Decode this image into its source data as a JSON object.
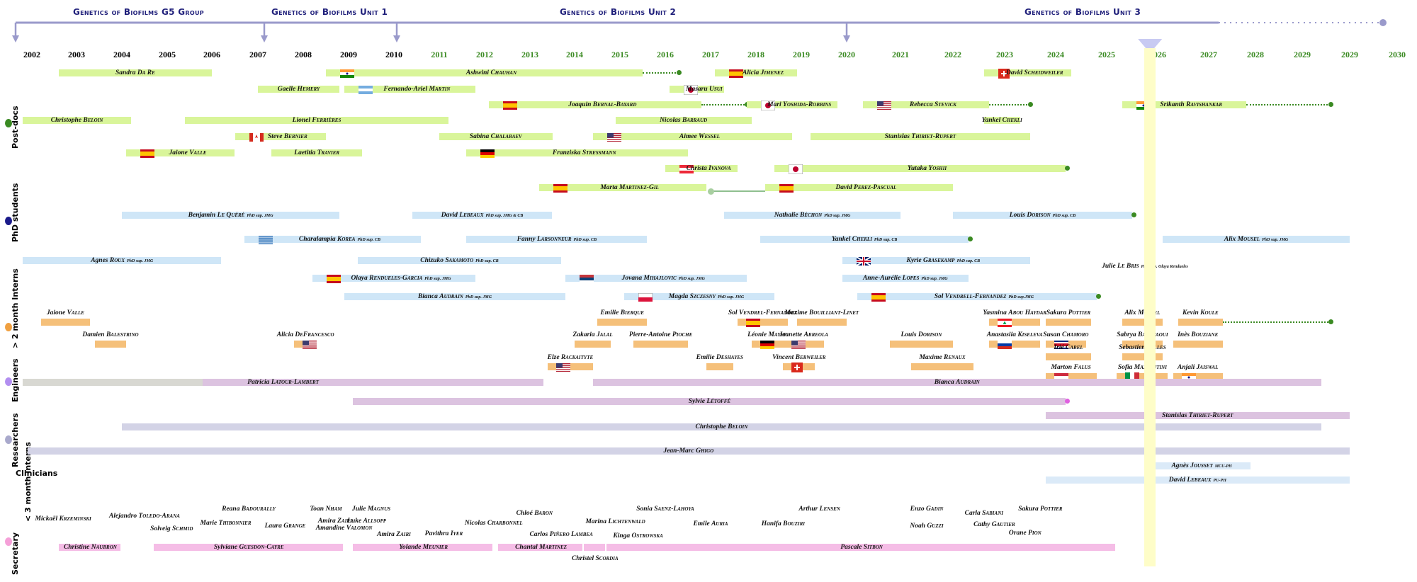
{
  "timeline": {
    "units": [
      {
        "title": "Genetics of Biofilms G5 Group",
        "start": 2002
      },
      {
        "title": "Genetics of Biofilms Unit 1",
        "start": 2007
      },
      {
        "title": "Genetics of Biofilms Unit 2",
        "start": 2010
      },
      {
        "title": "Genetics of Biofilms Unit 3",
        "start": 2020
      }
    ],
    "years": [
      {
        "label": "2002",
        "color": "#000000"
      },
      {
        "label": "2003",
        "color": "#000000"
      },
      {
        "label": "2004",
        "color": "#000000"
      },
      {
        "label": "2005",
        "color": "#000000"
      },
      {
        "label": "2006",
        "color": "#000000"
      },
      {
        "label": "2007",
        "color": "#000000"
      },
      {
        "label": "2008",
        "color": "#000000"
      },
      {
        "label": "2009",
        "color": "#000000"
      },
      {
        "label": "2010",
        "color": "#000000"
      },
      {
        "label": "2011",
        "color": "#3a8a22"
      },
      {
        "label": "2012",
        "color": "#3a8a22"
      },
      {
        "label": "2013",
        "color": "#3a8a22"
      },
      {
        "label": "2014",
        "color": "#3a8a22"
      },
      {
        "label": "2015",
        "color": "#3a8a22"
      },
      {
        "label": "2016",
        "color": "#3a8a22"
      },
      {
        "label": "2017",
        "color": "#3a8a22"
      },
      {
        "label": "2018",
        "color": "#3a8a22"
      },
      {
        "label": "2019",
        "color": "#3a8a22"
      },
      {
        "label": "2020",
        "color": "#3a8a22"
      },
      {
        "label": "2021",
        "color": "#3a8a22"
      },
      {
        "label": "2022",
        "color": "#3a8a22"
      },
      {
        "label": "2023",
        "color": "#3a8a22"
      },
      {
        "label": "2024",
        "color": "#3a8a22"
      },
      {
        "label": "2025",
        "color": "#3a8a22"
      },
      {
        "label": "2026",
        "color": "#3a8a22"
      },
      {
        "label": "2027",
        "color": "#3a8a22"
      },
      {
        "label": "2028",
        "color": "#3a8a22"
      },
      {
        "label": "2029",
        "color": "#3a8a22"
      },
      {
        "label": "2029",
        "color": "#3a8a22"
      },
      {
        "label": "2030",
        "color": "#3a8a22"
      }
    ],
    "current_year_marker": "2026",
    "colors": {
      "axis": "#9a9acb",
      "postdoc_bar": "#d9f59a",
      "phd_bar": "#cfe6f7",
      "intern_bar": "#f5c07a",
      "engineer_bar": "#dcc3e0",
      "researcher_bar": "#d3d3e6",
      "clinician_bar": "#dbeaf8",
      "secretary_bar": "#f5bde6",
      "grey_bar": "#d8d8d2",
      "highlight": "#fefdc8"
    }
  },
  "categories": [
    {
      "label": "Post-docs",
      "dot_color": "#3a8a22"
    },
    {
      "label": "PhD students",
      "dot_color": "#1a1a8a"
    },
    {
      "label": "> 2 month Interns",
      "dot_color": "#f0a040"
    },
    {
      "label": "Engineers",
      "dot_color": "#b28ef0"
    },
    {
      "label": "Researchers",
      "dot_color": "#a9a9cc"
    },
    {
      "label": "Clinicians",
      "dot_color": ""
    },
    {
      "label": "Secretary",
      "dot_color": "#f5a0d8"
    },
    {
      "label": "< 3 month Interns",
      "dot_color": ""
    }
  ],
  "people": {
    "postdocs": [
      {
        "name": "Sandra Da Re",
        "start": 2002.6,
        "end": 2006.0,
        "row": 0
      },
      {
        "name": "Ashwini Chauhan",
        "flag": "india",
        "start": 2008.5,
        "end": 2015.5,
        "row": 0,
        "dotted_to": 2016.3
      },
      {
        "name": "Alicia Jimenez",
        "flag": "spain",
        "start": 2017.1,
        "end": 2018.9,
        "row": 0
      },
      {
        "name": "David Scheidweiler",
        "flag": "switzerland",
        "start": 2022.6,
        "end": 2024.3,
        "row": 0
      },
      {
        "name": "Gaelle Hemery",
        "start": 2007.0,
        "end": 2008.8,
        "row": 1
      },
      {
        "name": "Fernando-Ariel Martin",
        "flag": "argentina",
        "start": 2008.9,
        "end": 2011.8,
        "row": 1
      },
      {
        "name": "Masaru Usui",
        "flag": "japan",
        "start": 2016.1,
        "end": 2017.3,
        "row": 1
      },
      {
        "name": "Joaquin Bernal-Bayard",
        "flag": "spain",
        "start": 2012.1,
        "end": 2016.8,
        "row": 2,
        "dotted_to": 2017.8
      },
      {
        "name": "Mari Yoshida-Robbins",
        "flag": "japan",
        "start": 2017.8,
        "end": 2019.8,
        "row": 2
      },
      {
        "name": "Rebecca Stevick",
        "flag": "usa",
        "start": 2020.3,
        "end": 2022.7,
        "row": 2,
        "dotted_to": 2023.5
      },
      {
        "name": "Srikanth Ravishankar",
        "flag": "india",
        "start": 2025.3,
        "end": 2027.8,
        "row": 2,
        "dotted_to": 2029.6
      },
      {
        "name": "Christophe Beloin",
        "start": 2001.8,
        "end": 2004.2,
        "row": 3
      },
      {
        "name": "Lionel Ferrières",
        "start": 2005.4,
        "end": 2011.2,
        "row": 3
      },
      {
        "name": "Nicolas Barraud",
        "start": 2014.9,
        "end": 2017.9,
        "row": 3
      },
      {
        "name": "Yankel Chekli",
        "start": 2022.6,
        "end": 2023.3,
        "row": 3
      },
      {
        "name": "Steve Bernier",
        "flag": "canada",
        "start": 2006.5,
        "end": 2008.5,
        "row": 4
      },
      {
        "name": "Sabina Chalabaev",
        "start": 2011.0,
        "end": 2013.5,
        "row": 4
      },
      {
        "name": "Aimee Wessel",
        "flag": "usa",
        "start": 2014.4,
        "end": 2018.8,
        "row": 4
      },
      {
        "name": "Stanislas Thiriet-Rupert",
        "start": 2019.2,
        "end": 2023.5,
        "row": 4,
        "dotted_end": true
      },
      {
        "name": "Jaione Valle",
        "flag": "spain",
        "start": 2004.1,
        "end": 2006.5,
        "row": 5
      },
      {
        "name": "Laetitia Travier",
        "start": 2007.3,
        "end": 2009.3,
        "row": 5
      },
      {
        "name": "Franziska Stressmann",
        "flag": "germany",
        "start": 2011.6,
        "end": 2016.5,
        "row": 5
      },
      {
        "name": "Christa Ivanova",
        "flag": "austria",
        "start": 2016.0,
        "end": 2017.6,
        "row": 6
      },
      {
        "name": "Yutaka Yoshii",
        "flag": "japan",
        "start": 2018.4,
        "end": 2024.2,
        "row": 6,
        "end_dot": true
      },
      {
        "name": "Marta Martinez-Gil",
        "flag": "spain",
        "start": 2013.2,
        "end": 2016.9,
        "row": 7
      },
      {
        "name": "David Perez-Pascual",
        "flag": "spain",
        "start": 2018.2,
        "end": 2022.0,
        "row": 7
      }
    ],
    "phd": [
      {
        "name": "Benjamin Le Quéré",
        "sup": "PhD sup. JMG",
        "start": 2004.0,
        "end": 2008.8,
        "row": 0
      },
      {
        "name": "David Lebeaux",
        "sup": "PhD sup. JMG & CB",
        "start": 2010.4,
        "end": 2013.5,
        "row": 0
      },
      {
        "name": "Nathalie Béchon",
        "sup": "PhD sup. JMG",
        "start": 2017.3,
        "end": 2021.0,
        "row": 0
      },
      {
        "name": "Louis Dorison",
        "sup": "PhD sup. CB",
        "start": 2022.0,
        "end": 2025.5,
        "row": 0,
        "end_dot": true
      },
      {
        "name": "Charalampia Korea",
        "flag": "greece",
        "sup": "PhD sup. CB",
        "start": 2006.7,
        "end": 2010.6,
        "row": 1
      },
      {
        "name": "Fanny Larsonneur",
        "sup": "PhD sup. CB",
        "start": 2011.6,
        "end": 2015.6,
        "row": 1
      },
      {
        "name": "Yankel Chekli",
        "sup": "PhD sup. CB",
        "start": 2018.1,
        "end": 2022.3,
        "row": 1,
        "end_dot": true
      },
      {
        "name": "Alix Mousel",
        "sup": "PhD sup. JMG",
        "start": 2026.1,
        "end": 2030.0,
        "row": 1
      },
      {
        "name": "Agnes Roux",
        "sup": "PhD sup. JMG",
        "start": 2001.8,
        "end": 2006.2,
        "row": 2
      },
      {
        "name": "Chizuko Sakamoto",
        "sup": "PhD sup. CB",
        "start": 2009.2,
        "end": 2013.7,
        "row": 2
      },
      {
        "name": "Kyrie Grasekamp",
        "flag": "uk",
        "sup": "PhD sup. CB",
        "start": 2019.9,
        "end": 2023.5,
        "row": 2
      },
      {
        "name": "Julie Le Bris",
        "sup": "PhD sup. Olaya Rendueles",
        "start": 2024.9,
        "end": 2026.6,
        "row": 3,
        "no_bar": true
      },
      {
        "name": "Olaya Rendueles-Garcia",
        "flag": "spain",
        "sup": "PhD sup. JMG",
        "start": 2008.2,
        "end": 2011.8,
        "row": 4
      },
      {
        "name": "Jovana Mihajlovic",
        "flag": "serbia",
        "sup": "PhD sup. JMG",
        "start": 2013.8,
        "end": 2017.8,
        "row": 4
      },
      {
        "name": "Anne-Aurélie Lopes",
        "sup": "PhD sup. JMG",
        "start": 2019.9,
        "end": 2022.3,
        "row": 4
      },
      {
        "name": "Bianca Audrain",
        "sup": "PhD sup. JMG",
        "start": 2008.9,
        "end": 2013.8,
        "row": 5
      },
      {
        "name": "Magda Szczesny",
        "flag": "poland",
        "sup": "PhD sup. JMG",
        "start": 2015.1,
        "end": 2018.4,
        "row": 5
      },
      {
        "name": "Sol Vendrell-Fernandez",
        "flag": "spain",
        "sup": "PhD sup.JMG",
        "start": 2020.2,
        "end": 2024.8,
        "row": 5,
        "end_dot": true
      }
    ],
    "interns_long": [
      {
        "name": "Jaione Valle",
        "start": 2002.2,
        "end": 2003.3,
        "row": 0
      },
      {
        "name": "Emilie Bierque",
        "start": 2014.5,
        "end": 2015.6,
        "row": 0
      },
      {
        "name": "Sol Vendrel-Fernandez",
        "flag": "spain",
        "start": 2017.6,
        "end": 2018.7,
        "row": 0
      },
      {
        "name": "Maxime Bouilliant-Linet",
        "start": 2018.9,
        "end": 2020.0,
        "row": 0
      },
      {
        "name": "Yasmina Abou Haydar",
        "flag": "lebanon",
        "start": 2022.7,
        "end": 2023.7,
        "row": 0
      },
      {
        "name": "Sakura Pottier",
        "start": 2023.8,
        "end": 2024.7,
        "row": 0
      },
      {
        "name": "Alix Mousel",
        "start": 2025.3,
        "end": 2026.1,
        "row": 0
      },
      {
        "name": "Kevin Koule",
        "start": 2026.4,
        "end": 2027.3,
        "row": 0,
        "dotted_to": 2029.6
      },
      {
        "name": "Damien Balestrino",
        "start": 2003.4,
        "end": 2004.1,
        "row": 1
      },
      {
        "name": "Alicia DeFrancesco",
        "flag": "usa",
        "start": 2007.8,
        "end": 2008.3,
        "row": 1
      },
      {
        "name": "Zakaria Jalal",
        "start": 2014.0,
        "end": 2014.8,
        "row": 1
      },
      {
        "name": "Pierre-Antoine Pioche",
        "start": 2015.3,
        "end": 2016.5,
        "row": 1
      },
      {
        "name": "Léonie Mayer",
        "flag": "germany",
        "start": 2017.9,
        "end": 2018.6,
        "row": 1
      },
      {
        "name": "Jeanette Arreola",
        "flag": "usa",
        "start": 2018.6,
        "end": 2019.5,
        "row": 1
      },
      {
        "name": "Louis Dorison",
        "start": 2020.8,
        "end": 2022.0,
        "row": 1
      },
      {
        "name": "Anastasiia Kiseleva",
        "flag": "russia",
        "start": 2022.7,
        "end": 2023.7,
        "row": 1
      },
      {
        "name": "Susan Chamoro",
        "flag": "costa-rica",
        "start": 2023.8,
        "end": 2024.6,
        "row": 1
      },
      {
        "name": "Sabrya Bakhtaoui",
        "start": 2025.3,
        "end": 2026.1,
        "row": 1
      },
      {
        "name": "Inès Bouziane",
        "start": 2026.3,
        "end": 2027.3,
        "row": 1
      },
      {
        "name": "Irié Carel",
        "start": 2023.8,
        "end": 2024.7,
        "row": 2
      },
      {
        "name": "Sebastien Gilles",
        "start": 2025.3,
        "end": 2026.1,
        "row": 2
      },
      {
        "name": "Elze Rackaityte",
        "flag": "usa",
        "start": 2013.4,
        "end": 2014.4,
        "row": 3
      },
      {
        "name": "Emilie Deshayes",
        "start": 2016.9,
        "end": 2017.5,
        "row": 3
      },
      {
        "name": "Vincent Berweiler",
        "flag": "switzerland",
        "start": 2018.6,
        "end": 2019.3,
        "row": 3
      },
      {
        "name": "Maxime Renaux",
        "start": 2021.2,
        "end": 2022.4,
        "row": 3
      },
      {
        "name": "Marton Falus",
        "flag": "hungary",
        "start": 2023.8,
        "end": 2024.8,
        "row": 4
      },
      {
        "name": "Sofia Mazzantini",
        "flag": "italy",
        "start": 2025.2,
        "end": 2026.2,
        "row": 4
      },
      {
        "name": "Anjali Jaiswal",
        "flag": "india",
        "start": 2026.3,
        "end": 2027.3,
        "row": 4
      }
    ],
    "engineers": [
      {
        "name": "Patricia Latour-Lambert",
        "start": 2001.8,
        "end": 2013.3,
        "row": 0,
        "grey_until": 2005.8
      },
      {
        "name": "Bianca Audrain",
        "start": 2014.4,
        "end": 2029.4,
        "row": 0
      },
      {
        "name": "Sylvie Létoffé",
        "start": 2009.1,
        "end": 2024.2,
        "row": 1,
        "end_dot": true
      },
      {
        "name": "Stanislas Thiriet-Rupert",
        "start": 2023.8,
        "end": 2030.0,
        "row": 2
      }
    ],
    "researchers": [
      {
        "name": "Christophe Beloin",
        "start": 2004.0,
        "end": 2029.4,
        "row": 0
      },
      {
        "name": "Jean-Marc Ghigo",
        "start": 2001.9,
        "end": 2030.0,
        "row": 1
      }
    ],
    "clinicians": [
      {
        "name": "Agnès Jousset",
        "role": "MCU-PH",
        "start": 2025.9,
        "end": 2027.9,
        "row": 0
      },
      {
        "name": "David Lebeaux",
        "role": "PU-PH",
        "start": 2023.8,
        "end": 2030.0,
        "row": 1
      }
    ],
    "interns_short": [
      {
        "name": "Mickaël Krzeminski",
        "year": 2002.7,
        "row": 1
      },
      {
        "name": "Alejandro Toledo-Arana",
        "year": 2004.5,
        "row": 0.7
      },
      {
        "name": "Solveig Schmid",
        "year": 2005.1,
        "row": 2
      },
      {
        "name": "Marie Thibonnier",
        "year": 2006.3,
        "row": 1.4
      },
      {
        "name": "Reana Badourally",
        "year": 2006.8,
        "row": 0
      },
      {
        "name": "Laura Grange",
        "year": 2007.6,
        "row": 1.7
      },
      {
        "name": "Toan Nham",
        "year": 2008.5,
        "row": 0
      },
      {
        "name": "Amira Zairi",
        "year": 2008.7,
        "row": 1.2
      },
      {
        "name": "Amandine Valomon",
        "year": 2008.9,
        "row": 1.9
      },
      {
        "name": "Julie Magnus",
        "year": 2009.5,
        "row": 0
      },
      {
        "name": "Luke Allsopp",
        "year": 2009.4,
        "row": 1.2
      },
      {
        "name": "Amira Zairi",
        "year": 2010.0,
        "row": 2.6
      },
      {
        "name": "Pavithra Iyer",
        "year": 2011.1,
        "row": 2.5
      },
      {
        "name": "Nicolas Charbonnel",
        "year": 2012.2,
        "row": 1.4
      },
      {
        "name": "Chloé Baron",
        "year": 2013.1,
        "row": 0.4
      },
      {
        "name": "Carlos Piñero Lambea",
        "year": 2013.7,
        "row": 2.6
      },
      {
        "name": "Marina Lichtenwald",
        "year": 2014.9,
        "row": 1.3
      },
      {
        "name": "Kinga Ostrowska",
        "year": 2015.4,
        "row": 2.7
      },
      {
        "name": "Sonia Saenz-Lahoya",
        "year": 2016.0,
        "row": 0
      },
      {
        "name": "Emile Auria",
        "year": 2017.0,
        "row": 1.5
      },
      {
        "name": "Hanifa Bouziri",
        "year": 2018.6,
        "row": 1.5
      },
      {
        "name": "Arthur Lensen",
        "year": 2019.4,
        "row": 0
      },
      {
        "name": "Enzo Gadin",
        "year": 2021.5,
        "row": 0
      },
      {
        "name": "Noah Guzzi",
        "year": 2021.5,
        "row": 1.7
      },
      {
        "name": "Carla Sabiani",
        "year": 2022.6,
        "row": 0.4
      },
      {
        "name": "Cathy Gautier",
        "year": 2022.8,
        "row": 1.6
      },
      {
        "name": "Sakura Pottier",
        "year": 2023.7,
        "row": 0
      },
      {
        "name": "Orane Pion",
        "year": 2023.4,
        "row": 2.4
      }
    ],
    "secretaries": [
      {
        "name": "Christine Naubron",
        "start": 2002.6,
        "end": 2004.0
      },
      {
        "name": "Sylviane Guesdon-Cayre",
        "start": 2004.7,
        "end": 2008.9
      },
      {
        "name": "Yolande Meunier",
        "start": 2009.1,
        "end": 2012.2
      },
      {
        "name": "Chantal Martinez",
        "start": 2012.3,
        "end": 2014.2
      },
      {
        "name": "Christel Scordia",
        "start": 2014.2,
        "end": 2014.7,
        "label_below": true
      },
      {
        "name": "Pascale Sitbon",
        "start": 2014.7,
        "end": 2025.2
      }
    ]
  }
}
